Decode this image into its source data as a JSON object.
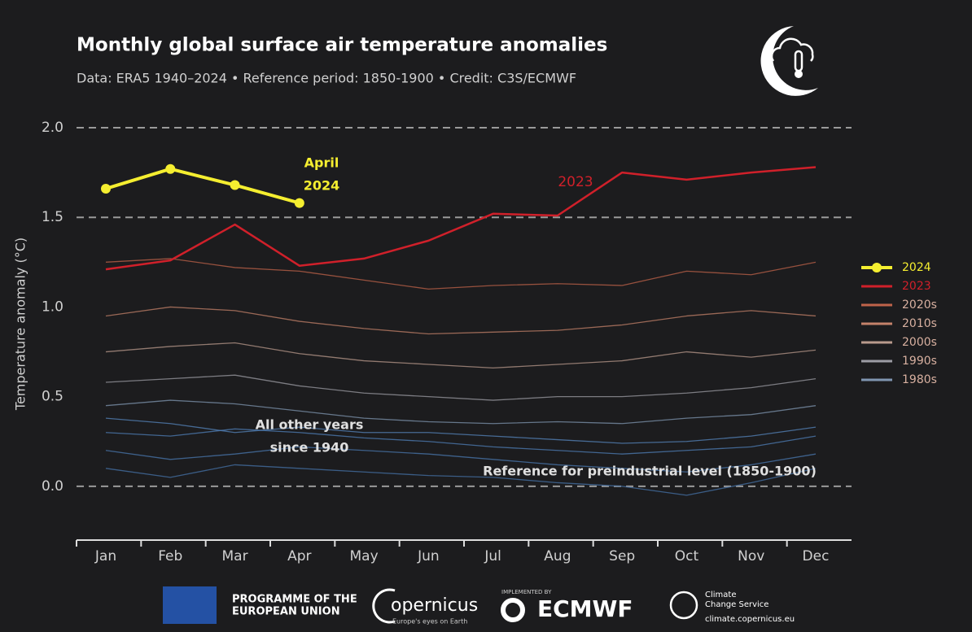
{
  "chart_data": {
    "type": "line",
    "title": "Monthly global surface air temperature anomalies",
    "subtitle": "Data: ERA5 1940–2024 • Reference period: 1850-1900 • Credit: C3S/ECMWF",
    "y_label": "Temperature anomaly (°C)",
    "categories": [
      "Jan",
      "Feb",
      "Mar",
      "Apr",
      "May",
      "Jun",
      "Jul",
      "Aug",
      "Sep",
      "Oct",
      "Nov",
      "Dec"
    ],
    "ylim": [
      -0.3,
      2.0
    ],
    "yticks": [
      {
        "value": 0,
        "label": "0.0"
      },
      {
        "value": 0.5,
        "label": "0.5"
      },
      {
        "value": 1,
        "label": "1.0"
      },
      {
        "value": 1.5,
        "label": "1.5"
      },
      {
        "value": 2,
        "label": "2.0"
      }
    ],
    "reference_lines": [
      0,
      1.5,
      2
    ],
    "series": [
      {
        "name": "2024",
        "color": "#f5ee30",
        "values": [
          1.66,
          1.77,
          1.68,
          1.58,
          null,
          null,
          null,
          null,
          null,
          null,
          null,
          null
        ]
      },
      {
        "name": "2023",
        "color": "#d0202a",
        "values": [
          1.21,
          1.26,
          1.46,
          1.23,
          1.27,
          1.37,
          1.52,
          1.51,
          1.75,
          1.71,
          1.75,
          1.78
        ]
      },
      {
        "name": "2020s",
        "color": "#c0634a",
        "values": [
          1.25,
          1.27,
          1.22,
          1.2,
          1.15,
          1.1,
          1.12,
          1.13,
          1.12,
          1.2,
          1.18,
          1.25
        ]
      },
      {
        "name": "2010s",
        "color": "#c4826a",
        "values": [
          0.95,
          1.0,
          0.98,
          0.92,
          0.88,
          0.85,
          0.86,
          0.87,
          0.9,
          0.95,
          0.98,
          0.95
        ]
      },
      {
        "name": "2000s",
        "color": "#b99a8c",
        "values": [
          0.75,
          0.78,
          0.8,
          0.74,
          0.7,
          0.68,
          0.66,
          0.68,
          0.7,
          0.75,
          0.72,
          0.76
        ]
      },
      {
        "name": "1990s",
        "color": "#9c9ca4",
        "values": [
          0.58,
          0.6,
          0.62,
          0.56,
          0.52,
          0.5,
          0.48,
          0.5,
          0.5,
          0.52,
          0.55,
          0.6
        ]
      },
      {
        "name": "1980s",
        "color": "#7f95b0",
        "values": [
          0.45,
          0.48,
          0.46,
          0.42,
          0.38,
          0.36,
          0.35,
          0.36,
          0.35,
          0.38,
          0.4,
          0.45
        ]
      },
      {
        "color": "#4f7fb8",
        "values": [
          0.3,
          0.28,
          0.32,
          0.3,
          0.27,
          0.25,
          0.22,
          0.2,
          0.18,
          0.2,
          0.22,
          0.28
        ]
      },
      {
        "color": "#4a78b0",
        "values": [
          0.2,
          0.15,
          0.18,
          0.22,
          0.2,
          0.18,
          0.15,
          0.12,
          0.1,
          0.08,
          0.12,
          0.18
        ]
      },
      {
        "color": "#5585bd",
        "values": [
          0.38,
          0.35,
          0.3,
          0.33,
          0.3,
          0.3,
          0.28,
          0.26,
          0.24,
          0.25,
          0.28,
          0.33
        ]
      },
      {
        "color": "#4673aa",
        "values": [
          0.1,
          0.05,
          0.12,
          0.1,
          0.08,
          0.06,
          0.05,
          0.02,
          0.0,
          -0.05,
          0.02,
          0.1
        ]
      }
    ],
    "annotations": {
      "april": [
        "April",
        "2024"
      ],
      "year2023": "2023",
      "others": [
        "All other years",
        "since 1940"
      ],
      "reference": "Reference for preindustrial level (1850-1900)"
    }
  },
  "footer": {
    "eu": [
      "PROGRAMME OF THE",
      "EUROPEAN UNION"
    ],
    "copernicus": "opernicus",
    "copernicus_tag": "Europe's eyes on Earth",
    "implemented": "IMPLEMENTED BY",
    "ecmwf": "ECMWF",
    "c3s": [
      "Climate",
      "Change Service"
    ],
    "c3s_url": "climate.copernicus.eu"
  }
}
